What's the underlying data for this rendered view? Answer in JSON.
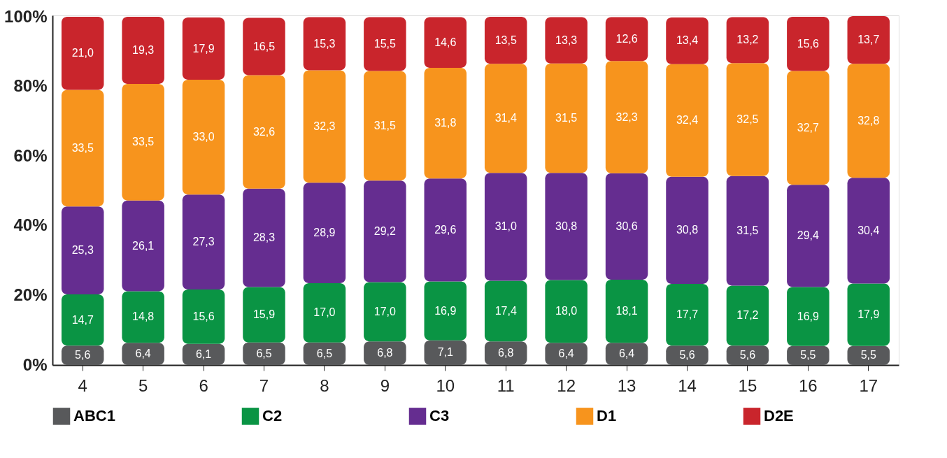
{
  "chart_data": {
    "type": "bar",
    "stacked": true,
    "categories": [
      "4",
      "5",
      "6",
      "7",
      "8",
      "9",
      "10",
      "11",
      "12",
      "13",
      "14",
      "15",
      "16",
      "17"
    ],
    "series": [
      {
        "name": "ABC1",
        "color": "#58595b",
        "values": [
          5.6,
          6.4,
          6.1,
          6.5,
          6.5,
          6.8,
          7.1,
          6.8,
          6.4,
          6.4,
          5.6,
          5.6,
          5.5,
          5.5
        ],
        "value_labels": [
          "5,6",
          "6,4",
          "6,1",
          "6,5",
          "6,5",
          "6,8",
          "7,1",
          "6,8",
          "6,4",
          "6,4",
          "5,6",
          "5,6",
          "5,5",
          "5,5"
        ]
      },
      {
        "name": "C2",
        "color": "#0a9444",
        "values": [
          14.7,
          14.8,
          15.6,
          15.9,
          17.0,
          17.0,
          16.9,
          17.4,
          18.0,
          18.1,
          17.7,
          17.2,
          16.9,
          17.9
        ],
        "value_labels": [
          "14,7",
          "14,8",
          "15,6",
          "15,9",
          "17,0",
          "17,0",
          "16,9",
          "17,4",
          "18,0",
          "18,1",
          "17,7",
          "17,2",
          "16,9",
          "17,9"
        ]
      },
      {
        "name": "C3",
        "color": "#652d90",
        "values": [
          25.3,
          26.1,
          27.3,
          28.3,
          28.9,
          29.2,
          29.6,
          31.0,
          30.8,
          30.6,
          30.8,
          31.5,
          29.4,
          30.4
        ],
        "value_labels": [
          "25,3",
          "26,1",
          "27,3",
          "28,3",
          "28,9",
          "29,2",
          "29,6",
          "31,0",
          "30,8",
          "30,6",
          "30,8",
          "31,5",
          "29,4",
          "30,4"
        ]
      },
      {
        "name": "D1",
        "color": "#f7941d",
        "values": [
          33.5,
          33.5,
          33.0,
          32.6,
          32.3,
          31.5,
          31.8,
          31.4,
          31.5,
          32.3,
          32.4,
          32.5,
          32.7,
          32.8
        ],
        "value_labels": [
          "33,5",
          "33,5",
          "33,0",
          "32,6",
          "32,3",
          "31,5",
          "31,8",
          "31,4",
          "31,5",
          "32,3",
          "32,4",
          "32,5",
          "32,7",
          "32,8"
        ]
      },
      {
        "name": "D2E",
        "color": "#c9252c",
        "values": [
          21.0,
          19.3,
          17.9,
          16.5,
          15.3,
          15.5,
          14.6,
          13.5,
          13.3,
          12.6,
          13.4,
          13.2,
          15.6,
          13.7
        ],
        "value_labels": [
          "21,0",
          "19,3",
          "17,9",
          "16,5",
          "15,3",
          "15,5",
          "14,6",
          "13,5",
          "13,3",
          "12,6",
          "13,4",
          "13,2",
          "15,6",
          "13,7"
        ]
      }
    ],
    "ylim": [
      0,
      100.5
    ],
    "yticks": [
      {
        "value": 0,
        "label": "0%"
      },
      {
        "value": 20,
        "label": "20%"
      },
      {
        "value": 40,
        "label": "40%"
      },
      {
        "value": 60,
        "label": "60%"
      },
      {
        "value": 80,
        "label": "80%"
      },
      {
        "value": 100,
        "label": "100%"
      }
    ],
    "grid": false,
    "legend": "bottom"
  }
}
